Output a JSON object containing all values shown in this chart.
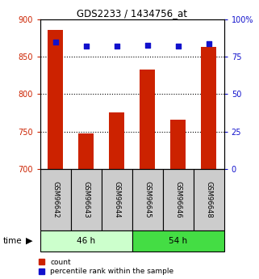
{
  "title": "GDS2233 / 1434756_at",
  "samples": [
    "GSM96642",
    "GSM96643",
    "GSM96644",
    "GSM96645",
    "GSM96646",
    "GSM96648"
  ],
  "counts": [
    886,
    747,
    776,
    833,
    766,
    863
  ],
  "percentile_ranks": [
    85,
    82,
    82,
    83,
    82,
    84
  ],
  "ylim_left": [
    700,
    900
  ],
  "ylim_right": [
    0,
    100
  ],
  "yticks_left": [
    700,
    750,
    800,
    850,
    900
  ],
  "yticks_right": [
    0,
    25,
    50,
    75,
    100
  ],
  "ytick_labels_right": [
    "0",
    "25",
    "50",
    "75",
    "100%"
  ],
  "bar_color": "#cc2200",
  "dot_color": "#1111cc",
  "group1_label": "46 h",
  "group2_label": "54 h",
  "group1_bg": "#ccffcc",
  "group2_bg": "#44dd44",
  "sample_box_bg": "#cccccc",
  "time_label": "time",
  "legend_count_label": "count",
  "legend_pct_label": "percentile rank within the sample",
  "left_tick_color": "#cc2200",
  "right_tick_color": "#1111cc",
  "gridline_ticks": [
    750,
    800,
    850
  ]
}
